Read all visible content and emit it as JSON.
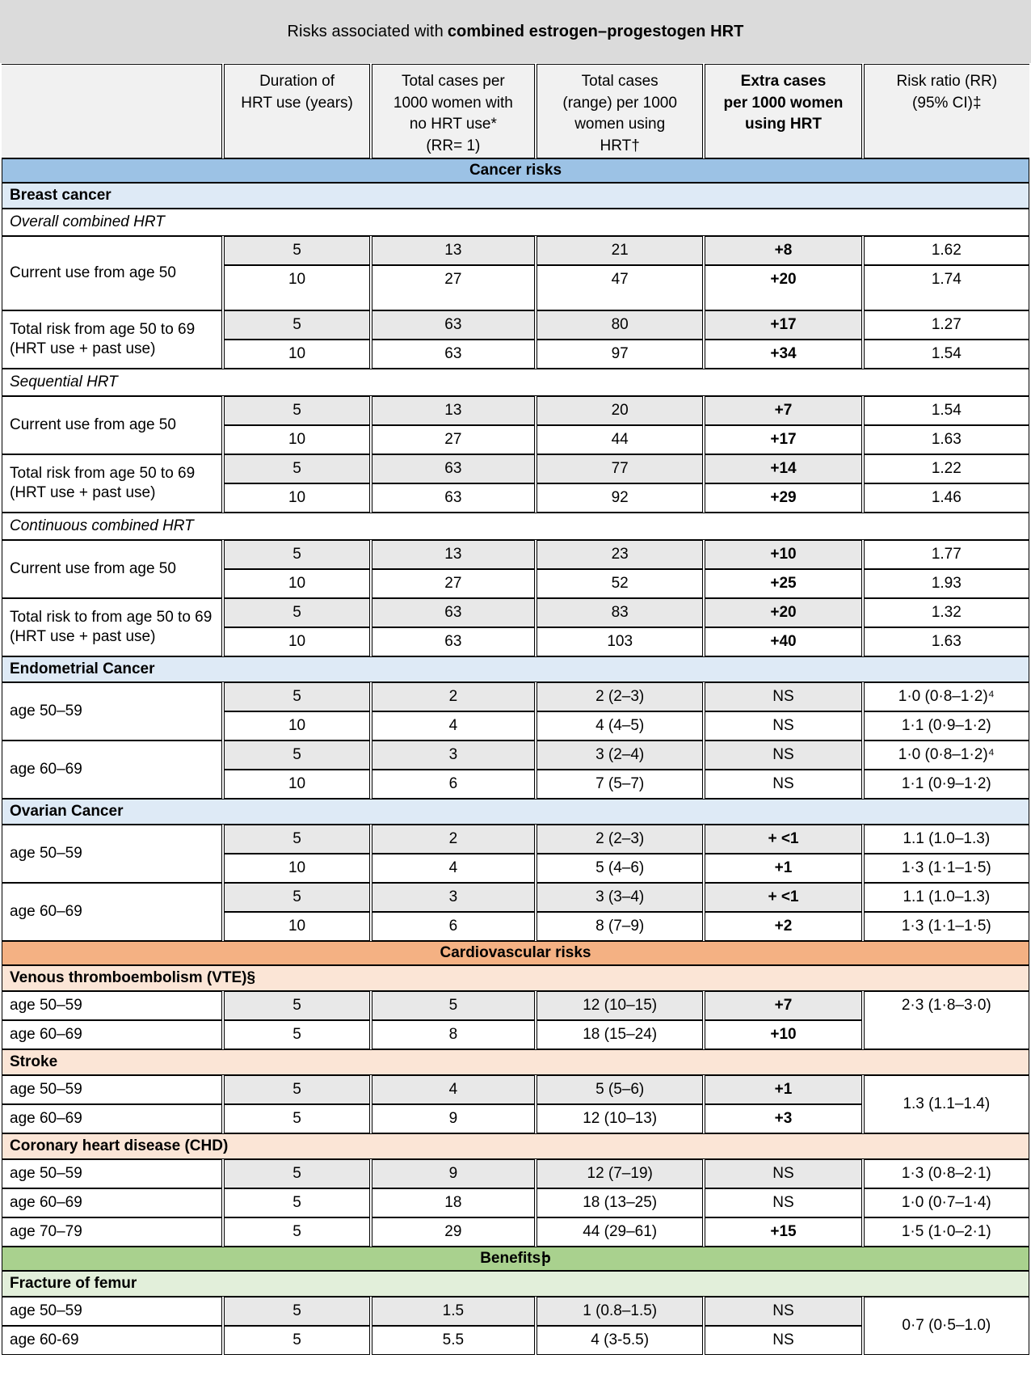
{
  "page": {
    "title_normal": "Risks associated with",
    "title_bold": "combined estrogen–progestogen HRT"
  },
  "header": {
    "col0": "",
    "col1": "Duration of\nHRT use (years)",
    "col2": "Total cases per\n1000 women with\nno HRT use*\n(RR= 1)",
    "col3": "Total cases\n(range) per 1000\nwomen using\nHRT†",
    "col4": "Extra cases\nper 1000 women\nusing HRT",
    "col5": "Risk ratio (RR)\n(95% CI)‡"
  },
  "colors": {
    "title_band": "#dbdbdb",
    "header_bg": "#f1f1f1",
    "shaded_cell": "#e8e8e8",
    "cancer_band": "#9cc2e5",
    "cancer_section": "#deeaf6",
    "cardio_band": "#f4b183",
    "cardio_section": "#fbe5d6",
    "benefit_band": "#a9d18e",
    "benefit_section": "#e2efda"
  },
  "rows": [
    {
      "t": "band",
      "c": "cancer",
      "text": "Cancer risks"
    },
    {
      "t": "sec",
      "c": "cancer",
      "text": "Breast cancer"
    },
    {
      "t": "ital",
      "text": "Overall combined HRT"
    },
    {
      "t": "d",
      "label": "Current use from age 50",
      "lspan": 2,
      "shade": 1,
      "cells": [
        "5",
        "13",
        "21",
        "+8"
      ],
      "rr": "1.62"
    },
    {
      "t": "d",
      "cells": [
        "10",
        "27",
        "47",
        "+20"
      ],
      "rr": "1.74",
      "tall": 1
    },
    {
      "t": "d",
      "label": "Total risk from age 50 to 69 (HRT use + past use)",
      "lspan": 2,
      "shade": 1,
      "cells": [
        "5",
        "63",
        "80",
        "+17"
      ],
      "rr": "1.27"
    },
    {
      "t": "d",
      "cells": [
        "10",
        "63",
        "97",
        "+34"
      ],
      "rr": "1.54"
    },
    {
      "t": "ital",
      "text": "Sequential HRT"
    },
    {
      "t": "d",
      "label": "Current use from age 50",
      "lspan": 2,
      "shade": 1,
      "cells": [
        "5",
        "13",
        "20",
        "+7"
      ],
      "rr": "1.54"
    },
    {
      "t": "d",
      "cells": [
        "10",
        "27",
        "44",
        "+17"
      ],
      "rr": "1.63"
    },
    {
      "t": "d",
      "label": "Total risk from age 50 to 69 (HRT use + past use)",
      "lspan": 2,
      "shade": 1,
      "cells": [
        "5",
        "63",
        "77",
        "+14"
      ],
      "rr": "1.22"
    },
    {
      "t": "d",
      "cells": [
        "10",
        "63",
        "92",
        "+29"
      ],
      "rr": "1.46"
    },
    {
      "t": "ital",
      "text": "Continuous combined HRT"
    },
    {
      "t": "d",
      "label": "Current use from age 50",
      "lspan": 2,
      "shade": 1,
      "cells": [
        "5",
        "13",
        "23",
        "+10"
      ],
      "rr": "1.77"
    },
    {
      "t": "d",
      "cells": [
        "10",
        "27",
        "52",
        "+25"
      ],
      "rr": "1.93"
    },
    {
      "t": "d",
      "label": "Total risk to from age 50 to 69 (HRT use + past use)",
      "lspan": 2,
      "shade": 1,
      "cells": [
        "5",
        "63",
        "83",
        "+20"
      ],
      "rr": "1.32"
    },
    {
      "t": "d",
      "cells": [
        "10",
        "63",
        "103",
        "+40"
      ],
      "rr": "1.63"
    },
    {
      "t": "sec",
      "c": "cancer",
      "text": "Endometrial Cancer"
    },
    {
      "t": "d",
      "label": "age 50–59",
      "lspan": 2,
      "shade": 1,
      "cells": [
        "5",
        "2",
        "2 (2–3)",
        "NS"
      ],
      "rr": "1·0 (0·8–1·2)⁴"
    },
    {
      "t": "d",
      "cells": [
        "10",
        "4",
        "4 (4–5)",
        "NS"
      ],
      "rr": "1·1 (0·9–1·2)"
    },
    {
      "t": "d",
      "label": "age 60–69",
      "lspan": 2,
      "shade": 1,
      "cells": [
        "5",
        "3",
        "3 (2–4)",
        "NS"
      ],
      "rr": "1·0 (0·8–1·2)⁴"
    },
    {
      "t": "d",
      "cells": [
        "10",
        "6",
        "7 (5–7)",
        "NS"
      ],
      "rr": "1·1 (0·9–1·2)"
    },
    {
      "t": "sec",
      "c": "cancer",
      "text": "Ovarian Cancer"
    },
    {
      "t": "d",
      "label": "age 50–59",
      "lspan": 2,
      "shade": 1,
      "cells": [
        "5",
        "2",
        "2 (2–3)",
        "+ <1"
      ],
      "rr": "1.1 (1.0–1.3)"
    },
    {
      "t": "d",
      "cells": [
        "10",
        "4",
        "5 (4–6)",
        "+1"
      ],
      "rr": "1·3 (1·1–1·5)"
    },
    {
      "t": "d",
      "label": "age 60–69",
      "lspan": 2,
      "shade": 1,
      "cells": [
        "5",
        "3",
        "3 (3–4)",
        "+ <1"
      ],
      "rr": "1.1 (1.0–1.3)"
    },
    {
      "t": "d",
      "cells": [
        "10",
        "6",
        "8 (7–9)",
        "+2"
      ],
      "rr": "1·3 (1·1–1·5)"
    },
    {
      "t": "band",
      "c": "cardio",
      "text": "Cardiovascular risks"
    },
    {
      "t": "sec",
      "c": "cardio",
      "text": "Venous thromboembolism (VTE)§"
    },
    {
      "t": "d",
      "label": "age 50–59",
      "shade": 1,
      "cells": [
        "5",
        "5",
        "12 (10–15)",
        "+7"
      ],
      "rr": "2·3 (1·8–3·0)",
      "rrspan": 2,
      "rrtop": 1
    },
    {
      "t": "d",
      "label": "age 60–69",
      "cells": [
        "5",
        "8",
        "18 (15–24)",
        "+10"
      ]
    },
    {
      "t": "sec",
      "c": "cardio",
      "text": "Stroke"
    },
    {
      "t": "d",
      "label": "age 50–59",
      "shade": 1,
      "cells": [
        "5",
        "4",
        "5 (5–6)",
        "+1"
      ],
      "rr": "1.3 (1.1–1.4)",
      "rrspan": 2
    },
    {
      "t": "d",
      "label": "age 60–69",
      "cells": [
        "5",
        "9",
        "12 (10–13)",
        "+3"
      ]
    },
    {
      "t": "sec",
      "c": "cardio",
      "text": "Coronary heart disease (CHD)"
    },
    {
      "t": "d",
      "label": "age 50–59",
      "shade": 1,
      "cells": [
        "5",
        "9",
        "12 (7–19)",
        "NS"
      ],
      "rr": "1·3 (0·8–2·1)"
    },
    {
      "t": "d",
      "label": "age 60–69",
      "cells": [
        "5",
        "18",
        "18 (13–25)",
        "NS"
      ],
      "rr": "1·0 (0·7–1·4)"
    },
    {
      "t": "d",
      "label": "age 70–79",
      "cells": [
        "5",
        "29",
        "44 (29–61)",
        "+15"
      ],
      "rr": "1·5 (1·0–2·1)"
    },
    {
      "t": "band",
      "c": "benefit",
      "text": "Benefits",
      "marker": "þ"
    },
    {
      "t": "sec",
      "c": "benefit",
      "text": "Fracture of femur"
    },
    {
      "t": "d",
      "label": "age 50–59",
      "shade": 1,
      "cells": [
        "5",
        "1.5",
        "1 (0.8–1.5)",
        "NS"
      ],
      "rr": "0·7 (0·5–1.0)",
      "rrspan": 2
    },
    {
      "t": "d",
      "label": "age 60-69",
      "cells": [
        "5",
        "5.5",
        "4 (3-5.5)",
        "NS"
      ]
    }
  ]
}
